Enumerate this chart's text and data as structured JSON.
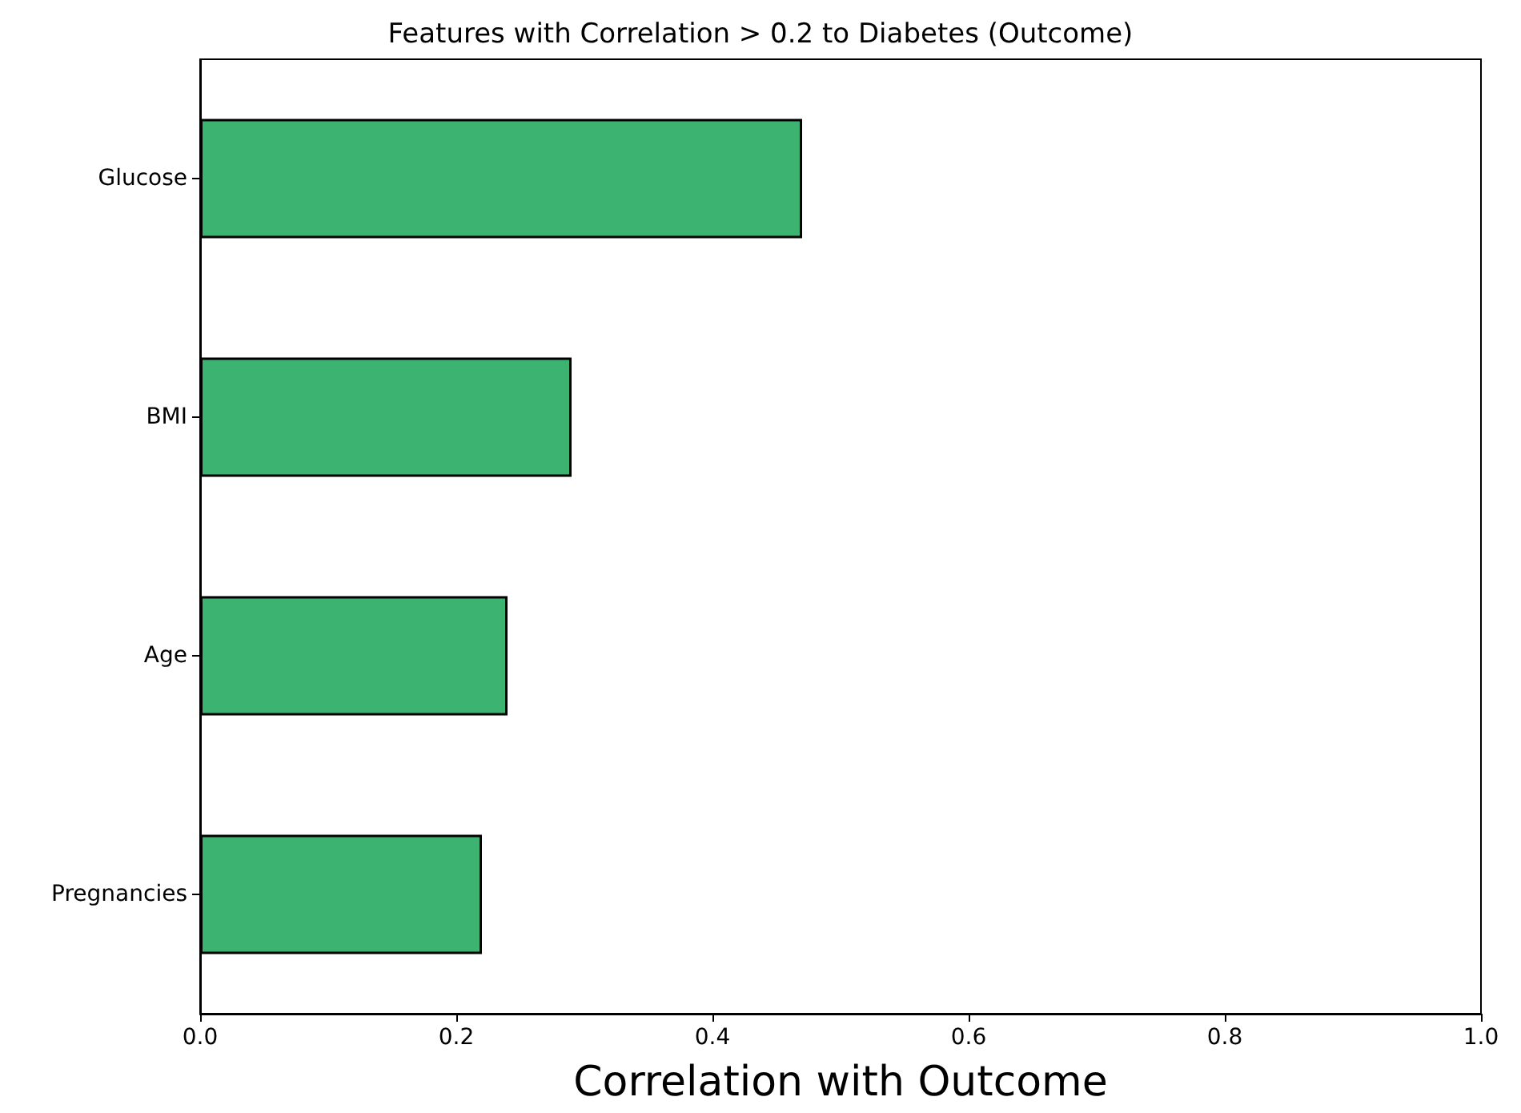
{
  "chart_data": {
    "type": "bar",
    "orientation": "horizontal",
    "title": "Features with Correlation > 0.2 to Diabetes (Outcome)",
    "xlabel": "Correlation with Outcome",
    "categories": [
      "Glucose",
      "BMI",
      "Age",
      "Pregnancies"
    ],
    "values": [
      0.47,
      0.29,
      0.24,
      0.22
    ],
    "color": "#3cb371",
    "xlim": [
      0,
      1
    ],
    "xticks": [
      {
        "value": 0,
        "label": "0.0"
      },
      0.2,
      0.4,
      0.6,
      0.8,
      {
        "value": 1,
        "label": "1.0"
      }
    ],
    "grid": false
  }
}
